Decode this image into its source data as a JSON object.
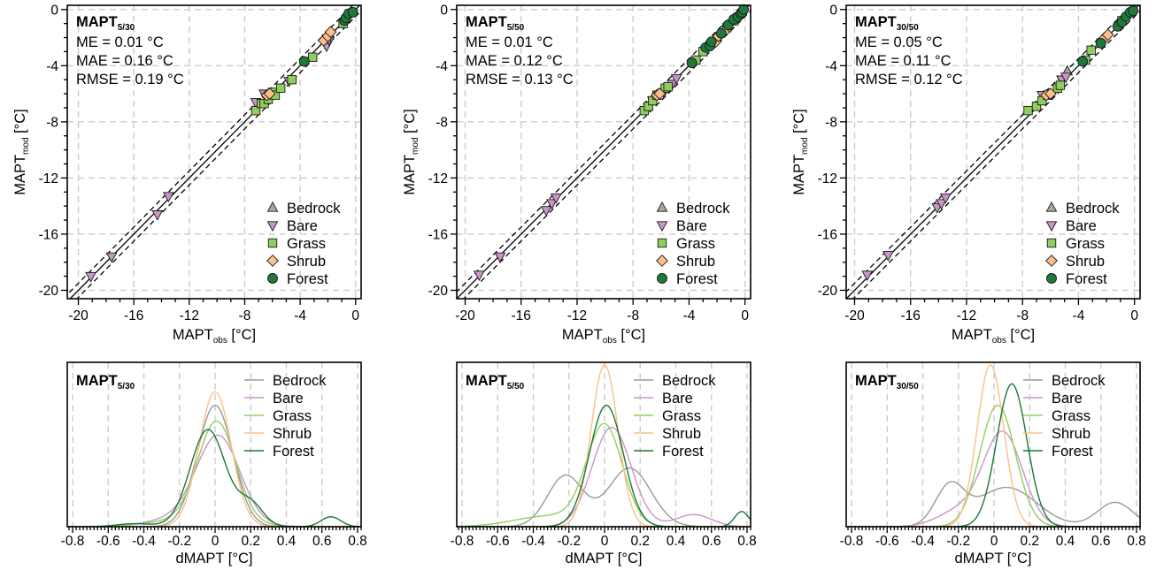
{
  "colors": {
    "Bedrock": "#999999",
    "Bare": "#c994c7",
    "Grass": "#91cf60",
    "Shrub": "#fdc086",
    "Forest": "#1b7837",
    "BedrockFill": "#a6a6a6",
    "BareFill": "#c994c7",
    "GrassFill": "#8fce5c",
    "ShrubFill": "#fdc08b",
    "ForestFill": "#1e7a3a"
  },
  "legend_entries": [
    {
      "name": "Bedrock",
      "marker": "triangle-up"
    },
    {
      "name": "Bare",
      "marker": "triangle-down"
    },
    {
      "name": "Grass",
      "marker": "square"
    },
    {
      "name": "Shrub",
      "marker": "diamond"
    },
    {
      "name": "Forest",
      "marker": "circle"
    }
  ],
  "chart_data": [
    {
      "type": "scatter",
      "title_main": "MAPT",
      "title_sub": "5/30",
      "stats": [
        "ME = 0.01 °C",
        "MAE = 0.16 °C",
        "RMSE = 0.19 °C"
      ],
      "xlabel_main": "MAPT",
      "xlabel_sub": "obs",
      "xlabel_unit": " [°C]",
      "ylabel_main": "MAPT",
      "ylabel_sub": "mod",
      "ylabel_unit": " [°C]",
      "xlim": [
        -20.8,
        0.4
      ],
      "ylim": [
        -20.6,
        0.3
      ],
      "xticks": [
        -20,
        -16,
        -12,
        -8,
        -4,
        0
      ],
      "yticks": [
        0,
        -4,
        -8,
        -12,
        -16,
        -20
      ],
      "minor_step": 1,
      "tolerance": 0.5,
      "legend": "bottom-right",
      "series": [
        {
          "name": "Bare",
          "points": [
            [
              -19.1,
              -19.0
            ],
            [
              -17.6,
              -17.6
            ],
            [
              -14.3,
              -14.6
            ],
            [
              -13.5,
              -13.3
            ],
            [
              -7.2,
              -6.6
            ],
            [
              -6.6,
              -6.0
            ],
            [
              -4.8,
              -5.1
            ],
            [
              -2.1,
              -2.6
            ],
            [
              -1.9,
              -2.2
            ]
          ]
        },
        {
          "name": "Grass",
          "points": [
            [
              -7.2,
              -7.2
            ],
            [
              -6.8,
              -6.7
            ],
            [
              -6.6,
              -6.7
            ],
            [
              -6.3,
              -6.4
            ],
            [
              -6.0,
              -5.9
            ],
            [
              -5.8,
              -6.1
            ],
            [
              -5.4,
              -5.6
            ],
            [
              -4.6,
              -5.0
            ],
            [
              -3.1,
              -3.4
            ],
            [
              -2.1,
              -2.1
            ],
            [
              -0.9,
              -1.0
            ]
          ]
        },
        {
          "name": "Shrub",
          "points": [
            [
              -6.4,
              -6.1
            ],
            [
              -6.2,
              -6.0
            ],
            [
              -2.3,
              -2.2
            ],
            [
              -2.0,
              -1.9
            ],
            [
              -1.8,
              -1.6
            ]
          ]
        },
        {
          "name": "Forest",
          "points": [
            [
              -3.7,
              -3.7
            ],
            [
              -0.8,
              -0.8
            ],
            [
              -0.7,
              -0.6
            ],
            [
              -0.5,
              -0.3
            ],
            [
              -0.2,
              -0.2
            ]
          ]
        }
      ]
    },
    {
      "type": "scatter",
      "title_main": "MAPT",
      "title_sub": "5/50",
      "stats": [
        "ME = 0.01 °C",
        "MAE = 0.12 °C",
        "RMSE = 0.13 °C"
      ],
      "xlabel_main": "MAPT",
      "xlabel_sub": "obs",
      "xlabel_unit": " [°C]",
      "ylabel_main": "MAPT",
      "ylabel_sub": "mod",
      "ylabel_unit": " [°C]",
      "xlim": [
        -20.6,
        0.4
      ],
      "ylim": [
        -20.6,
        0.3
      ],
      "xticks": [
        -20,
        -16,
        -12,
        -8,
        -4,
        0
      ],
      "yticks": [
        0,
        -4,
        -8,
        -12,
        -16,
        -20
      ],
      "minor_step": 1,
      "tolerance": 0.5,
      "legend": "bottom-right",
      "series": [
        {
          "name": "Bare",
          "points": [
            [
              -19.0,
              -18.9
            ],
            [
              -17.5,
              -17.6
            ],
            [
              -14.2,
              -14.3
            ],
            [
              -13.8,
              -13.8
            ],
            [
              -13.5,
              -13.4
            ],
            [
              -6.6,
              -6.5
            ],
            [
              -5.8,
              -5.9
            ],
            [
              -5.2,
              -5.3
            ],
            [
              -4.9,
              -4.9
            ]
          ]
        },
        {
          "name": "Grass",
          "points": [
            [
              -7.2,
              -7.2
            ],
            [
              -6.9,
              -6.9
            ],
            [
              -6.6,
              -6.5
            ],
            [
              -6.3,
              -6.1
            ],
            [
              -5.7,
              -5.6
            ],
            [
              -5.5,
              -5.5
            ],
            [
              -3.5,
              -3.6
            ],
            [
              -3.0,
              -3.0
            ],
            [
              -1.3,
              -1.3
            ],
            [
              -0.8,
              -0.8
            ]
          ]
        },
        {
          "name": "Shrub",
          "points": [
            [
              -6.3,
              -6.1
            ],
            [
              -6.1,
              -6.0
            ],
            [
              -2.1,
              -2.3
            ],
            [
              -1.9,
              -1.9
            ],
            [
              -1.5,
              -1.6
            ]
          ]
        },
        {
          "name": "Forest",
          "points": [
            [
              -3.8,
              -3.8
            ],
            [
              -2.8,
              -2.7
            ],
            [
              -2.5,
              -2.6
            ],
            [
              -2.4,
              -2.3
            ],
            [
              -1.7,
              -1.7
            ],
            [
              -1.2,
              -1.1
            ],
            [
              -0.8,
              -0.7
            ],
            [
              -0.5,
              -0.5
            ],
            [
              -0.3,
              -0.3
            ],
            [
              -0.2,
              -0.2
            ],
            [
              -0.1,
              0.0
            ]
          ]
        }
      ]
    },
    {
      "type": "scatter",
      "title_main": "MAPT",
      "title_sub": "30/50",
      "stats": [
        "ME = 0.05 °C",
        "MAE = 0.11 °C",
        "RMSE = 0.12 °C"
      ],
      "xlabel_main": "MAPT",
      "xlabel_sub": "obs",
      "xlabel_unit": " [°C]",
      "ylabel_main": "MAPT",
      "ylabel_sub": "mod",
      "ylabel_unit": " [°C]",
      "xlim": [
        -20.6,
        0.4
      ],
      "ylim": [
        -20.6,
        0.3
      ],
      "xticks": [
        -20,
        -16,
        -12,
        -8,
        -4,
        0
      ],
      "yticks": [
        0,
        -4,
        -8,
        -12,
        -16,
        -20
      ],
      "minor_step": 1,
      "tolerance": 0.5,
      "legend": "bottom-right",
      "series": [
        {
          "name": "Bedrock",
          "points": [
            [
              -4.8,
              -4.4
            ]
          ]
        },
        {
          "name": "Bare",
          "points": [
            [
              -19.1,
              -18.9
            ],
            [
              -17.6,
              -17.5
            ],
            [
              -14.1,
              -14.1
            ],
            [
              -13.8,
              -13.8
            ],
            [
              -13.5,
              -13.4
            ],
            [
              -6.6,
              -6.1
            ],
            [
              -5.2,
              -5.0
            ],
            [
              -4.9,
              -4.8
            ]
          ]
        },
        {
          "name": "Grass",
          "points": [
            [
              -7.6,
              -7.2
            ],
            [
              -7.0,
              -6.9
            ],
            [
              -6.6,
              -6.5
            ],
            [
              -6.2,
              -6.1
            ],
            [
              -5.5,
              -5.6
            ],
            [
              -5.3,
              -5.4
            ],
            [
              -3.5,
              -3.6
            ],
            [
              -3.1,
              -2.9
            ],
            [
              -2.4,
              -2.4
            ],
            [
              -0.9,
              -0.8
            ]
          ]
        },
        {
          "name": "Shrub",
          "points": [
            [
              -6.3,
              -6.1
            ],
            [
              -6.0,
              -6.0
            ],
            [
              -2.2,
              -2.1
            ],
            [
              -1.9,
              -1.8
            ]
          ]
        },
        {
          "name": "Forest",
          "points": [
            [
              -3.7,
              -3.7
            ],
            [
              -2.4,
              -2.4
            ],
            [
              -1.2,
              -1.2
            ],
            [
              -0.9,
              -0.9
            ],
            [
              -0.6,
              -0.5
            ],
            [
              -0.3,
              -0.2
            ],
            [
              -0.1,
              -0.1
            ]
          ]
        }
      ]
    },
    {
      "type": "line",
      "title_main": "MAPT",
      "title_sub": "5/30",
      "xlabel": "dMAPT [°C]",
      "xlim": [
        -0.83,
        0.82
      ],
      "xticks": [
        -0.8,
        -0.6,
        -0.4,
        -0.2,
        0,
        0.2,
        0.4,
        0.6,
        0.8
      ],
      "xtick_labels": [
        "-0.8",
        "-0.6",
        "-0.4",
        "-0.2",
        "0",
        "0.2",
        "0.4",
        "0.6",
        "0.8"
      ],
      "minor_step": 0.02,
      "legend": "top-right",
      "y_axis_shown": false,
      "series": [
        {
          "name": "Bedrock",
          "components": [
            [
              1,
              0.0,
              0.1
            ]
          ]
        },
        {
          "name": "Bare",
          "components": [
            [
              0.82,
              0.02,
              0.12
            ],
            [
              0.18,
              -0.12,
              0.2
            ]
          ]
        },
        {
          "name": "Grass",
          "components": [
            [
              0.85,
              0.01,
              0.105
            ],
            [
              0.15,
              -0.1,
              0.22
            ]
          ]
        },
        {
          "name": "Shrub",
          "components": [
            [
              1,
              0.0,
              0.09
            ]
          ]
        },
        {
          "name": "Forest",
          "components": [
            [
              0.8,
              -0.04,
              0.1
            ],
            [
              0.13,
              0.2,
              0.07
            ],
            [
              0.045,
              0.65,
              0.055
            ],
            [
              0.025,
              -0.45,
              0.1
            ]
          ]
        }
      ]
    },
    {
      "type": "line",
      "title_main": "MAPT",
      "title_sub": "5/50",
      "xlabel": "dMAPT [°C]",
      "xlim": [
        -0.83,
        0.82
      ],
      "xticks": [
        -0.8,
        -0.6,
        -0.4,
        -0.2,
        0,
        0.2,
        0.4,
        0.6,
        0.8
      ],
      "xtick_labels": [
        "-0.8",
        "-0.6",
        "-0.4",
        "-0.2",
        "0",
        "0.2",
        "0.4",
        "0.6",
        "0.8"
      ],
      "minor_step": 0.02,
      "legend": "top-right",
      "y_axis_shown": false,
      "series": [
        {
          "name": "Bedrock",
          "components": [
            [
              0.42,
              -0.22,
              0.1
            ],
            [
              0.58,
              0.14,
              0.12
            ]
          ]
        },
        {
          "name": "Bare",
          "components": [
            [
              0.9,
              0.04,
              0.11
            ],
            [
              0.1,
              0.5,
              0.1
            ]
          ]
        },
        {
          "name": "Grass",
          "components": [
            [
              0.82,
              0.0,
              0.1
            ],
            [
              0.18,
              -0.3,
              0.2
            ]
          ]
        },
        {
          "name": "Shrub",
          "components": [
            [
              1,
              0.0,
              0.075
            ]
          ]
        },
        {
          "name": "Forest",
          "components": [
            [
              0.95,
              0.01,
              0.095
            ],
            [
              0.05,
              0.77,
              0.04
            ]
          ]
        }
      ]
    },
    {
      "type": "line",
      "title_main": "MAPT",
      "title_sub": "30/50",
      "xlabel": "dMAPT [°C]",
      "xlim": [
        -0.83,
        0.82
      ],
      "xticks": [
        -0.8,
        -0.6,
        -0.4,
        -0.2,
        0,
        0.2,
        0.4,
        0.6,
        0.8
      ],
      "xtick_labels": [
        "-0.8",
        "-0.6",
        "-0.4",
        "-0.2",
        "0",
        "0.2",
        "0.4",
        "0.6",
        "0.8"
      ],
      "minor_step": 0.02,
      "legend": "top-right",
      "y_axis_shown": false,
      "series": [
        {
          "name": "Bedrock",
          "components": [
            [
              0.55,
              0.07,
              0.17
            ],
            [
              0.25,
              -0.25,
              0.08
            ],
            [
              0.2,
              0.68,
              0.1
            ]
          ]
        },
        {
          "name": "Bare",
          "components": [
            [
              0.85,
              0.05,
              0.11
            ],
            [
              0.15,
              -0.2,
              0.12
            ]
          ]
        },
        {
          "name": "Grass",
          "components": [
            [
              1,
              0.02,
              0.1
            ]
          ]
        },
        {
          "name": "Shrub",
          "components": [
            [
              1,
              -0.02,
              0.075
            ]
          ]
        },
        {
          "name": "Forest",
          "components": [
            [
              1,
              0.1,
              0.085
            ]
          ]
        }
      ]
    }
  ]
}
